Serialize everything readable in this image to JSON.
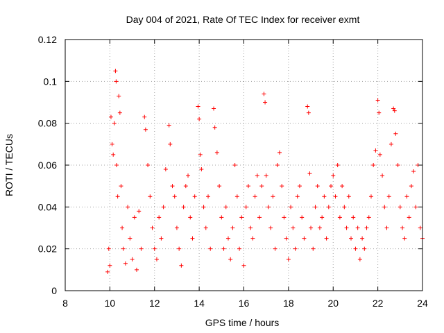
{
  "chart_data": {
    "type": "scatter",
    "title": "Day 004 of 2021, Rate Of TEC Index for receiver exmt",
    "xlabel": "GPS time / hours",
    "ylabel": "ROTI / TECUs",
    "xlim": [
      8,
      24
    ],
    "ylim": [
      0,
      0.12
    ],
    "xticks": [
      8,
      10,
      12,
      14,
      16,
      18,
      20,
      22,
      24
    ],
    "xtick_labels": [
      "8",
      "10",
      "12",
      "14",
      "16",
      "18",
      "20",
      "22",
      "24"
    ],
    "yticks": [
      0,
      0.02,
      0.04,
      0.06,
      0.08,
      0.1,
      0.12
    ],
    "ytick_labels": [
      "0",
      "0.02",
      "0.04",
      "0.06",
      "0.08",
      "0.1",
      "0.12"
    ],
    "grid": true,
    "marker": "plus",
    "color": "#ff0000",
    "series": [
      {
        "name": "ROTI",
        "points": [
          [
            9.9,
            0.009
          ],
          [
            9.95,
            0.02
          ],
          [
            10.0,
            0.012
          ],
          [
            10.05,
            0.083
          ],
          [
            10.1,
            0.07
          ],
          [
            10.15,
            0.065
          ],
          [
            10.2,
            0.08
          ],
          [
            10.25,
            0.105
          ],
          [
            10.28,
            0.1
          ],
          [
            10.3,
            0.06
          ],
          [
            10.35,
            0.045
          ],
          [
            10.4,
            0.093
          ],
          [
            10.45,
            0.085
          ],
          [
            10.5,
            0.05
          ],
          [
            10.55,
            0.03
          ],
          [
            10.6,
            0.02
          ],
          [
            10.7,
            0.013
          ],
          [
            10.8,
            0.04
          ],
          [
            10.9,
            0.025
          ],
          [
            11.0,
            0.015
          ],
          [
            11.1,
            0.035
          ],
          [
            11.2,
            0.01
          ],
          [
            11.3,
            0.038
          ],
          [
            11.4,
            0.02
          ],
          [
            11.55,
            0.083
          ],
          [
            11.6,
            0.077
          ],
          [
            11.7,
            0.06
          ],
          [
            11.8,
            0.045
          ],
          [
            11.9,
            0.03
          ],
          [
            12.0,
            0.02
          ],
          [
            12.1,
            0.015
          ],
          [
            12.2,
            0.035
          ],
          [
            12.3,
            0.025
          ],
          [
            12.4,
            0.04
          ],
          [
            12.5,
            0.058
          ],
          [
            12.65,
            0.079
          ],
          [
            12.7,
            0.07
          ],
          [
            12.8,
            0.05
          ],
          [
            12.9,
            0.045
          ],
          [
            13.0,
            0.03
          ],
          [
            13.1,
            0.02
          ],
          [
            13.2,
            0.012
          ],
          [
            13.3,
            0.04
          ],
          [
            13.4,
            0.05
          ],
          [
            13.5,
            0.055
          ],
          [
            13.6,
            0.035
          ],
          [
            13.7,
            0.025
          ],
          [
            13.8,
            0.045
          ],
          [
            13.95,
            0.088
          ],
          [
            14.0,
            0.082
          ],
          [
            14.05,
            0.065
          ],
          [
            14.1,
            0.058
          ],
          [
            14.2,
            0.04
          ],
          [
            14.3,
            0.03
          ],
          [
            14.4,
            0.045
          ],
          [
            14.5,
            0.02
          ],
          [
            14.65,
            0.087
          ],
          [
            14.7,
            0.078
          ],
          [
            14.8,
            0.066
          ],
          [
            14.9,
            0.05
          ],
          [
            15.0,
            0.035
          ],
          [
            15.1,
            0.02
          ],
          [
            15.2,
            0.04
          ],
          [
            15.3,
            0.025
          ],
          [
            15.4,
            0.015
          ],
          [
            15.5,
            0.03
          ],
          [
            15.6,
            0.06
          ],
          [
            15.7,
            0.045
          ],
          [
            15.8,
            0.02
          ],
          [
            15.9,
            0.035
          ],
          [
            16.0,
            0.012
          ],
          [
            16.1,
            0.04
          ],
          [
            16.2,
            0.05
          ],
          [
            16.3,
            0.03
          ],
          [
            16.4,
            0.025
          ],
          [
            16.5,
            0.045
          ],
          [
            16.6,
            0.055
          ],
          [
            16.7,
            0.035
          ],
          [
            16.8,
            0.05
          ],
          [
            16.9,
            0.094
          ],
          [
            16.95,
            0.09
          ],
          [
            17.0,
            0.055
          ],
          [
            17.1,
            0.04
          ],
          [
            17.2,
            0.03
          ],
          [
            17.3,
            0.045
          ],
          [
            17.4,
            0.02
          ],
          [
            17.5,
            0.06
          ],
          [
            17.6,
            0.066
          ],
          [
            17.7,
            0.05
          ],
          [
            17.8,
            0.035
          ],
          [
            17.9,
            0.025
          ],
          [
            18.0,
            0.015
          ],
          [
            18.1,
            0.04
          ],
          [
            18.2,
            0.03
          ],
          [
            18.3,
            0.02
          ],
          [
            18.4,
            0.045
          ],
          [
            18.5,
            0.05
          ],
          [
            18.6,
            0.035
          ],
          [
            18.7,
            0.025
          ],
          [
            18.85,
            0.088
          ],
          [
            18.9,
            0.085
          ],
          [
            18.95,
            0.056
          ],
          [
            19.0,
            0.03
          ],
          [
            19.1,
            0.02
          ],
          [
            19.2,
            0.04
          ],
          [
            19.3,
            0.05
          ],
          [
            19.4,
            0.03
          ],
          [
            19.5,
            0.035
          ],
          [
            19.6,
            0.045
          ],
          [
            19.7,
            0.025
          ],
          [
            19.8,
            0.04
          ],
          [
            19.9,
            0.05
          ],
          [
            20.0,
            0.055
          ],
          [
            20.1,
            0.045
          ],
          [
            20.2,
            0.06
          ],
          [
            20.3,
            0.035
          ],
          [
            20.4,
            0.05
          ],
          [
            20.5,
            0.04
          ],
          [
            20.6,
            0.03
          ],
          [
            20.7,
            0.045
          ],
          [
            20.8,
            0.025
          ],
          [
            20.9,
            0.035
          ],
          [
            21.0,
            0.02
          ],
          [
            21.1,
            0.03
          ],
          [
            21.2,
            0.015
          ],
          [
            21.3,
            0.025
          ],
          [
            21.4,
            0.02
          ],
          [
            21.5,
            0.03
          ],
          [
            21.6,
            0.035
          ],
          [
            21.7,
            0.045
          ],
          [
            21.8,
            0.06
          ],
          [
            21.9,
            0.067
          ],
          [
            22.0,
            0.091
          ],
          [
            22.05,
            0.085
          ],
          [
            22.1,
            0.065
          ],
          [
            22.2,
            0.055
          ],
          [
            22.3,
            0.04
          ],
          [
            22.4,
            0.03
          ],
          [
            22.5,
            0.045
          ],
          [
            22.6,
            0.07
          ],
          [
            22.7,
            0.087
          ],
          [
            22.75,
            0.086
          ],
          [
            22.8,
            0.075
          ],
          [
            22.9,
            0.06
          ],
          [
            23.0,
            0.04
          ],
          [
            23.1,
            0.03
          ],
          [
            23.2,
            0.025
          ],
          [
            23.3,
            0.045
          ],
          [
            23.4,
            0.035
          ],
          [
            23.5,
            0.05
          ],
          [
            23.6,
            0.057
          ],
          [
            23.7,
            0.04
          ],
          [
            23.8,
            0.06
          ],
          [
            23.9,
            0.03
          ],
          [
            24.0,
            0.025
          ]
        ]
      }
    ]
  }
}
